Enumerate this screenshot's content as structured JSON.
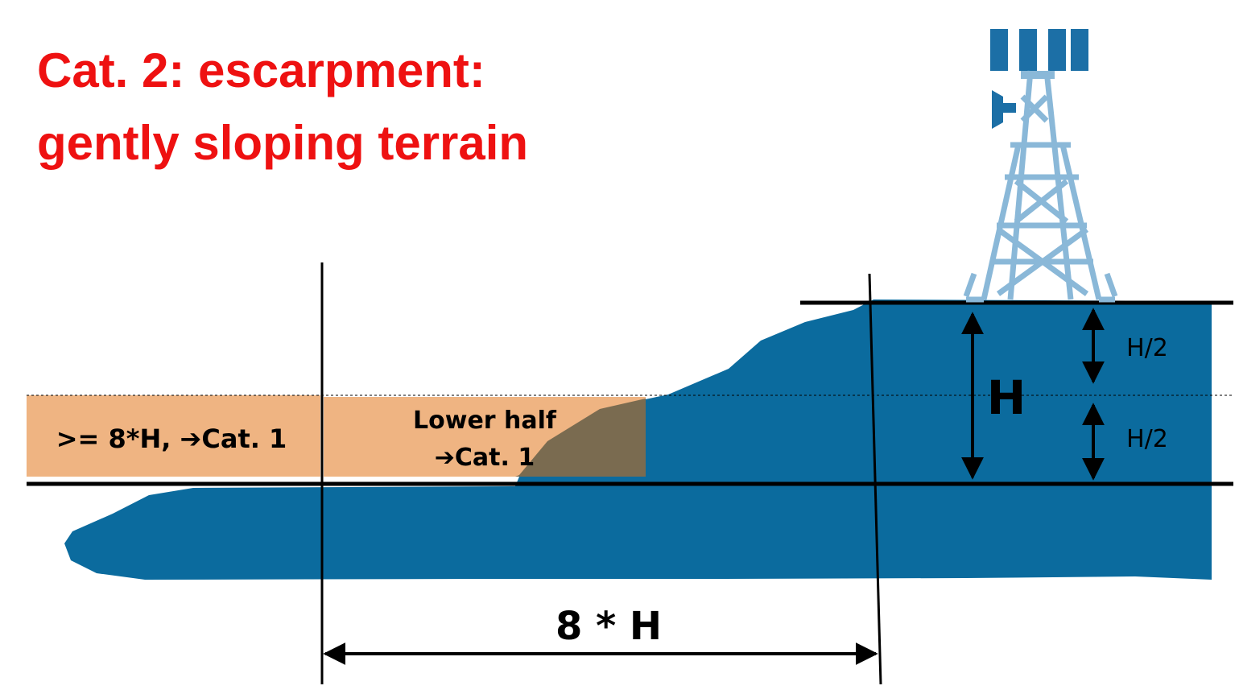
{
  "title": {
    "line1": "Cat. 2: escarpment:",
    "line2": "gently sloping terrain"
  },
  "zones": {
    "far_zone_label": ">= 8*H, ➔Cat. 1",
    "lower_half_line1": "Lower half",
    "lower_half_line2": "➔Cat. 1"
  },
  "dimensions": {
    "height_label": "H",
    "upper_half_label": "H/2",
    "lower_half_label": "H/2",
    "distance_label": "8 * H"
  },
  "colors": {
    "title": "#ee1111",
    "terrain": "#0b6b9e",
    "zone_fill": "#efb482",
    "overlap_fill": "#7a6b50",
    "tower": "#8ab8d8",
    "tower_panels": "#1c6fa6",
    "lines": "#000000"
  },
  "icons": {
    "tower": "telecom-tower-icon"
  }
}
